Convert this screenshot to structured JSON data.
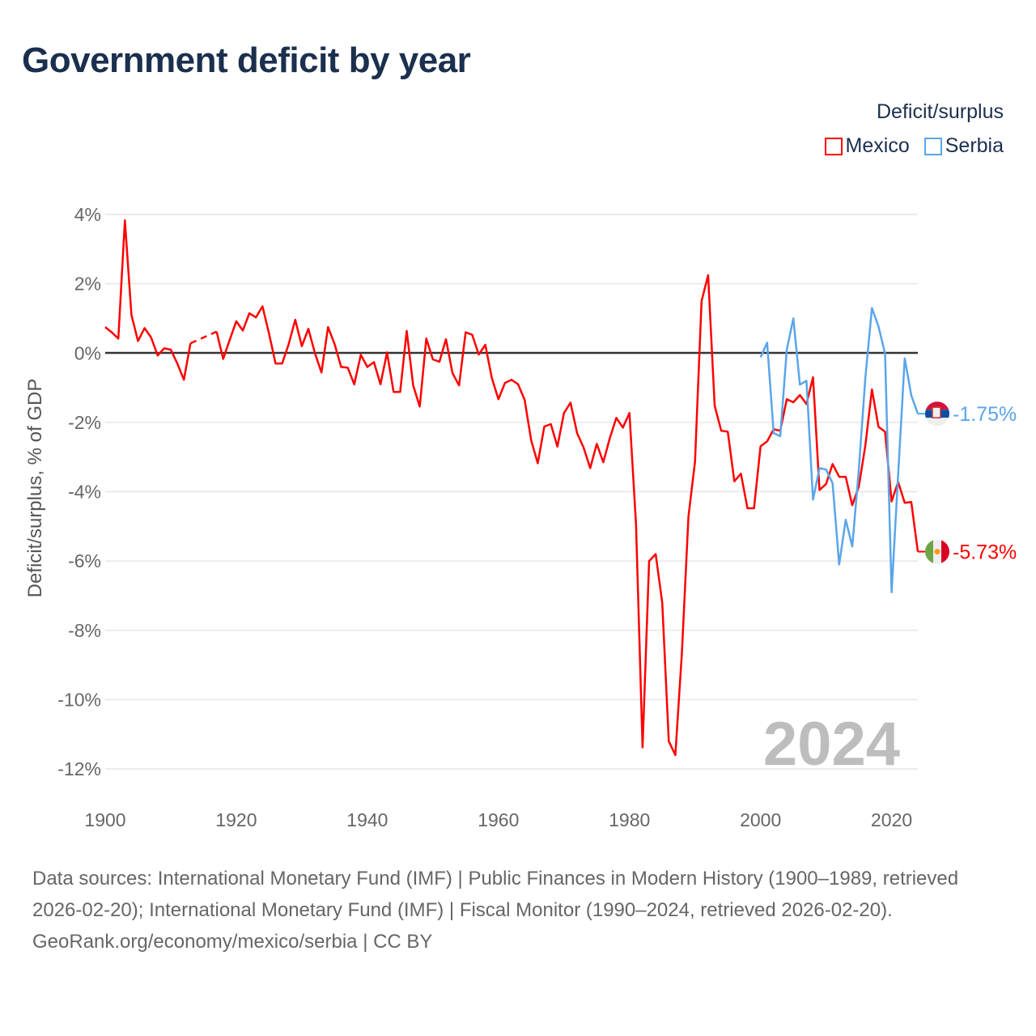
{
  "title": "Government deficit by year",
  "legend": {
    "title": "Deficit/surplus",
    "items": [
      {
        "name": "Mexico",
        "color": "#ff0000"
      },
      {
        "name": "Serbia",
        "color": "#5aa5ea"
      }
    ]
  },
  "chart_data": {
    "type": "line",
    "title": "Government deficit by year",
    "xlabel": "",
    "ylabel": "Deficit/surplus, % of GDP",
    "xlim": [
      1900,
      2024
    ],
    "ylim": [
      -12,
      4
    ],
    "x_ticks": [
      1900,
      1920,
      1940,
      1960,
      1980,
      2000,
      2020
    ],
    "y_ticks": [
      4,
      2,
      0,
      -2,
      -4,
      -6,
      -8,
      -10,
      -12
    ],
    "y_tick_labels": [
      "4%",
      "2%",
      "0%",
      "-2%",
      "-4%",
      "-6%",
      "-8%",
      "-10%",
      "-12%"
    ],
    "grid": true,
    "legend_position": "top-right",
    "year_label": "2024",
    "series": [
      {
        "name": "Mexico",
        "color": "#ff0000",
        "start_year": 1900,
        "end_label": "-5.73%",
        "values": [
          0.75,
          0.6,
          0.42,
          3.83,
          1.1,
          0.35,
          0.72,
          0.45,
          -0.07,
          0.14,
          0.1,
          -0.3,
          -0.77,
          0.28,
          null,
          null,
          null,
          0.62,
          -0.17,
          0.38,
          0.92,
          0.65,
          1.15,
          1.03,
          1.35,
          0.56,
          -0.3,
          -0.3,
          0.26,
          0.96,
          0.2,
          0.7,
          0,
          -0.56,
          0.75,
          0.26,
          -0.4,
          -0.42,
          -0.9,
          -0.05,
          -0.4,
          -0.26,
          -0.9,
          0.02,
          -1.12,
          -1.12,
          0.64,
          -0.93,
          -1.54,
          0.42,
          -0.18,
          -0.25,
          0.4,
          -0.58,
          -0.93,
          0.6,
          0.53,
          -0.04,
          0.24,
          -0.72,
          -1.33,
          -0.86,
          -0.77,
          -0.9,
          -1.35,
          -2.52,
          -3.18,
          -2.12,
          -2.05,
          -2.7,
          -1.73,
          -1.43,
          -2.31,
          -2.73,
          -3.32,
          -2.62,
          -3.15,
          -2.45,
          -1.87,
          -2.15,
          -1.73,
          -4.93,
          -11.38,
          -6.0,
          -5.8,
          -7.2,
          -11.2,
          -11.6,
          -8.65,
          -4.72,
          -3.13,
          1.5,
          2.25,
          -1.52,
          -2.24,
          -2.27,
          -3.7,
          -3.48,
          -4.48,
          -4.48,
          -2.69,
          -2.55,
          -2.2,
          -2.24,
          -1.33,
          -1.42,
          -1.21,
          -1.47,
          -0.7,
          -3.95,
          -3.78,
          -3.2,
          -3.57,
          -3.57,
          -4.39,
          -3.85,
          -2.66,
          -1.05,
          -2.13,
          -2.27,
          -4.28,
          -3.72,
          -4.32,
          -4.3,
          -5.73
        ]
      },
      {
        "name": "Serbia",
        "color": "#5aa5ea",
        "start_year": 2000,
        "end_label": "-1.75%",
        "values": [
          -0.12,
          0.3,
          -2.31,
          -2.4,
          0.1,
          1.0,
          -0.91,
          -0.8,
          -4.23,
          -3.32,
          -3.36,
          -3.76,
          -6.1,
          -4.81,
          -5.58,
          -3.36,
          -0.7,
          1.3,
          0.77,
          -0.02,
          -6.9,
          -3.5,
          -0.15,
          -1.22,
          -1.75
        ]
      }
    ]
  },
  "footer": {
    "sources": "Data sources: International Monetary Fund (IMF) | Public Finances in Modern History (1900–1989, retrieved 2026-02-20); International Monetary Fund (IMF) | Fiscal Monitor (1990–2024, retrieved 2026-02-20).",
    "credit": "GeoRank.org/economy/mexico/serbia | CC BY"
  }
}
